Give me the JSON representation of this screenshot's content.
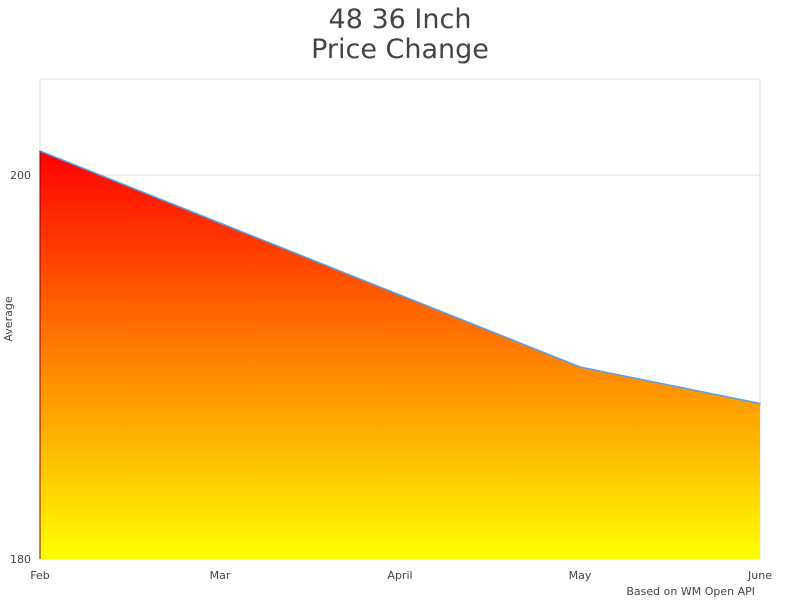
{
  "chart_data": {
    "type": "area",
    "title_lines": [
      "48 36 Inch",
      "Price Change"
    ],
    "xlabel": "",
    "ylabel": "Average",
    "categories": [
      "Feb",
      "Mar",
      "April",
      "May",
      "June"
    ],
    "values": [
      201.25,
      197.5,
      193.75,
      190,
      188.1
    ],
    "ylim": [
      180,
      205
    ],
    "yticks": [
      "180",
      "200"
    ],
    "ytick_values": [
      180,
      200
    ],
    "grid": true,
    "legend": "none",
    "colors": {
      "fill_top": "#ff0000",
      "fill_bottom": "#ffff00",
      "line": "#5aa0e6",
      "grid": "#dddddd"
    },
    "credit": "Based on WM Open API"
  }
}
